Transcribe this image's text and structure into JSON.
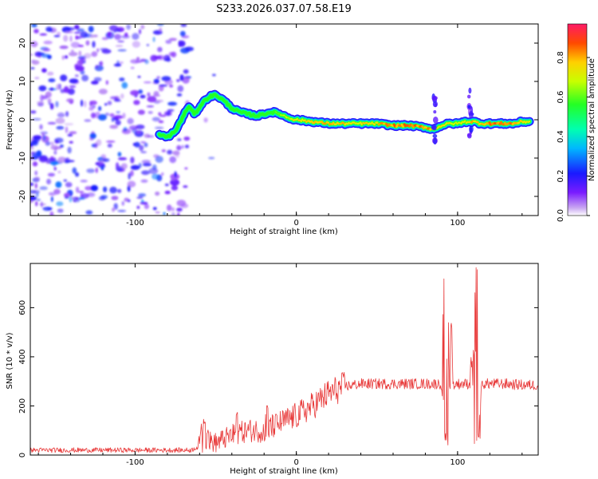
{
  "title": "S233.2026.037.07.58.E19",
  "colors": {
    "snr_line": "#e83a3a",
    "frame": "#000000",
    "ridge_core": "#e82020"
  },
  "chart_data": [
    {
      "type": "heatmap",
      "xlabel": "Height of straight line (km)",
      "ylabel": "Frequency (Hz)",
      "xlim": [
        -165,
        150
      ],
      "ylim": [
        -25,
        25
      ],
      "x_ticks": [
        -100,
        0,
        100
      ],
      "y_ticks": [
        20,
        10,
        0,
        -10,
        -20
      ],
      "colorbar": {
        "label": "Normalized spectral amplitude",
        "range": [
          0,
          0.97
        ],
        "ticks": [
          0.0,
          0.2,
          0.4,
          0.6,
          0.8
        ],
        "tick_labels": [
          "0.0",
          "0.2",
          "0.4",
          "0.6",
          "0.8"
        ],
        "colormap": "rainbow"
      },
      "ridge": {
        "x": [
          -85,
          -80,
          -75,
          -70,
          -67,
          -63,
          -58,
          -54,
          -50,
          -45,
          -40,
          -35,
          -30,
          -25,
          -20,
          -15,
          -10,
          -5,
          0,
          10,
          20,
          30,
          40,
          50,
          60,
          70,
          80,
          85,
          90,
          95,
          100,
          105,
          110,
          115,
          120,
          125,
          130,
          135,
          140,
          145
        ],
        "y": [
          -4,
          -4.5,
          -3,
          1,
          3.5,
          1.5,
          4.5,
          6,
          6.5,
          5,
          3,
          2,
          1.5,
          1,
          1.5,
          2,
          1.5,
          0.5,
          0,
          -0.5,
          -1,
          -1,
          -1,
          -1,
          -1.5,
          -1.5,
          -2,
          -2.5,
          -1.5,
          -1,
          -1,
          -0.5,
          -0.5,
          -1,
          -1,
          -1,
          -1,
          -1,
          -0.5,
          -0.5
        ],
        "amplitude": [
          0.5,
          0.5,
          0.45,
          0.45,
          0.45,
          0.45,
          0.5,
          0.55,
          0.6,
          0.55,
          0.6,
          0.6,
          0.6,
          0.6,
          0.6,
          0.6,
          0.65,
          0.7,
          0.75,
          0.8,
          0.8,
          0.8,
          0.75,
          0.8,
          0.85,
          0.85,
          0.85,
          0.8,
          0.75,
          0.75,
          0.7,
          0.75,
          0.8,
          0.8,
          0.85,
          0.85,
          0.85,
          0.85,
          0.8,
          0.75
        ]
      },
      "noise_region": {
        "x_range": [
          -165,
          -65
        ],
        "amplitude_range": [
          0.05,
          0.25
        ]
      }
    },
    {
      "type": "line",
      "xlabel": "Height of straight line (km)",
      "ylabel": "SNR (10 * v/v)",
      "xlim": [
        -165,
        150
      ],
      "ylim": [
        0,
        780
      ],
      "x_ticks": [
        -100,
        0,
        100
      ],
      "y_ticks": [
        0,
        200,
        400,
        600
      ],
      "series": [
        {
          "name": "SNR",
          "baseline_x": [
            -165,
            -65,
            -60,
            -55,
            -50,
            -40,
            -30,
            -20,
            -10,
            0,
            10,
            20,
            30,
            40,
            50,
            60,
            70,
            80,
            85,
            90,
            93,
            95,
            100,
            105,
            110,
            113,
            115,
            120,
            130,
            140,
            150
          ],
          "baseline_y": [
            20,
            20,
            40,
            60,
            50,
            80,
            100,
            100,
            130,
            160,
            200,
            250,
            280,
            290,
            290,
            290,
            290,
            290,
            290,
            290,
            80,
            290,
            290,
            290,
            290,
            120,
            290,
            290,
            290,
            285,
            285
          ],
          "spikes": [
            {
              "x": 92,
              "y": 745
            },
            {
              "x": 96,
              "y": 540
            },
            {
              "x": 112,
              "y": 775
            },
            {
              "x": 110,
              "y": 435
            },
            {
              "x": -57,
              "y": 150
            },
            {
              "x": -37,
              "y": 180
            },
            {
              "x": -18,
              "y": 210
            }
          ],
          "dips": [
            {
              "x": 93,
              "y": 40
            },
            {
              "x": 111,
              "y": 20
            },
            {
              "x": 113,
              "y": 40
            }
          ]
        }
      ]
    }
  ]
}
